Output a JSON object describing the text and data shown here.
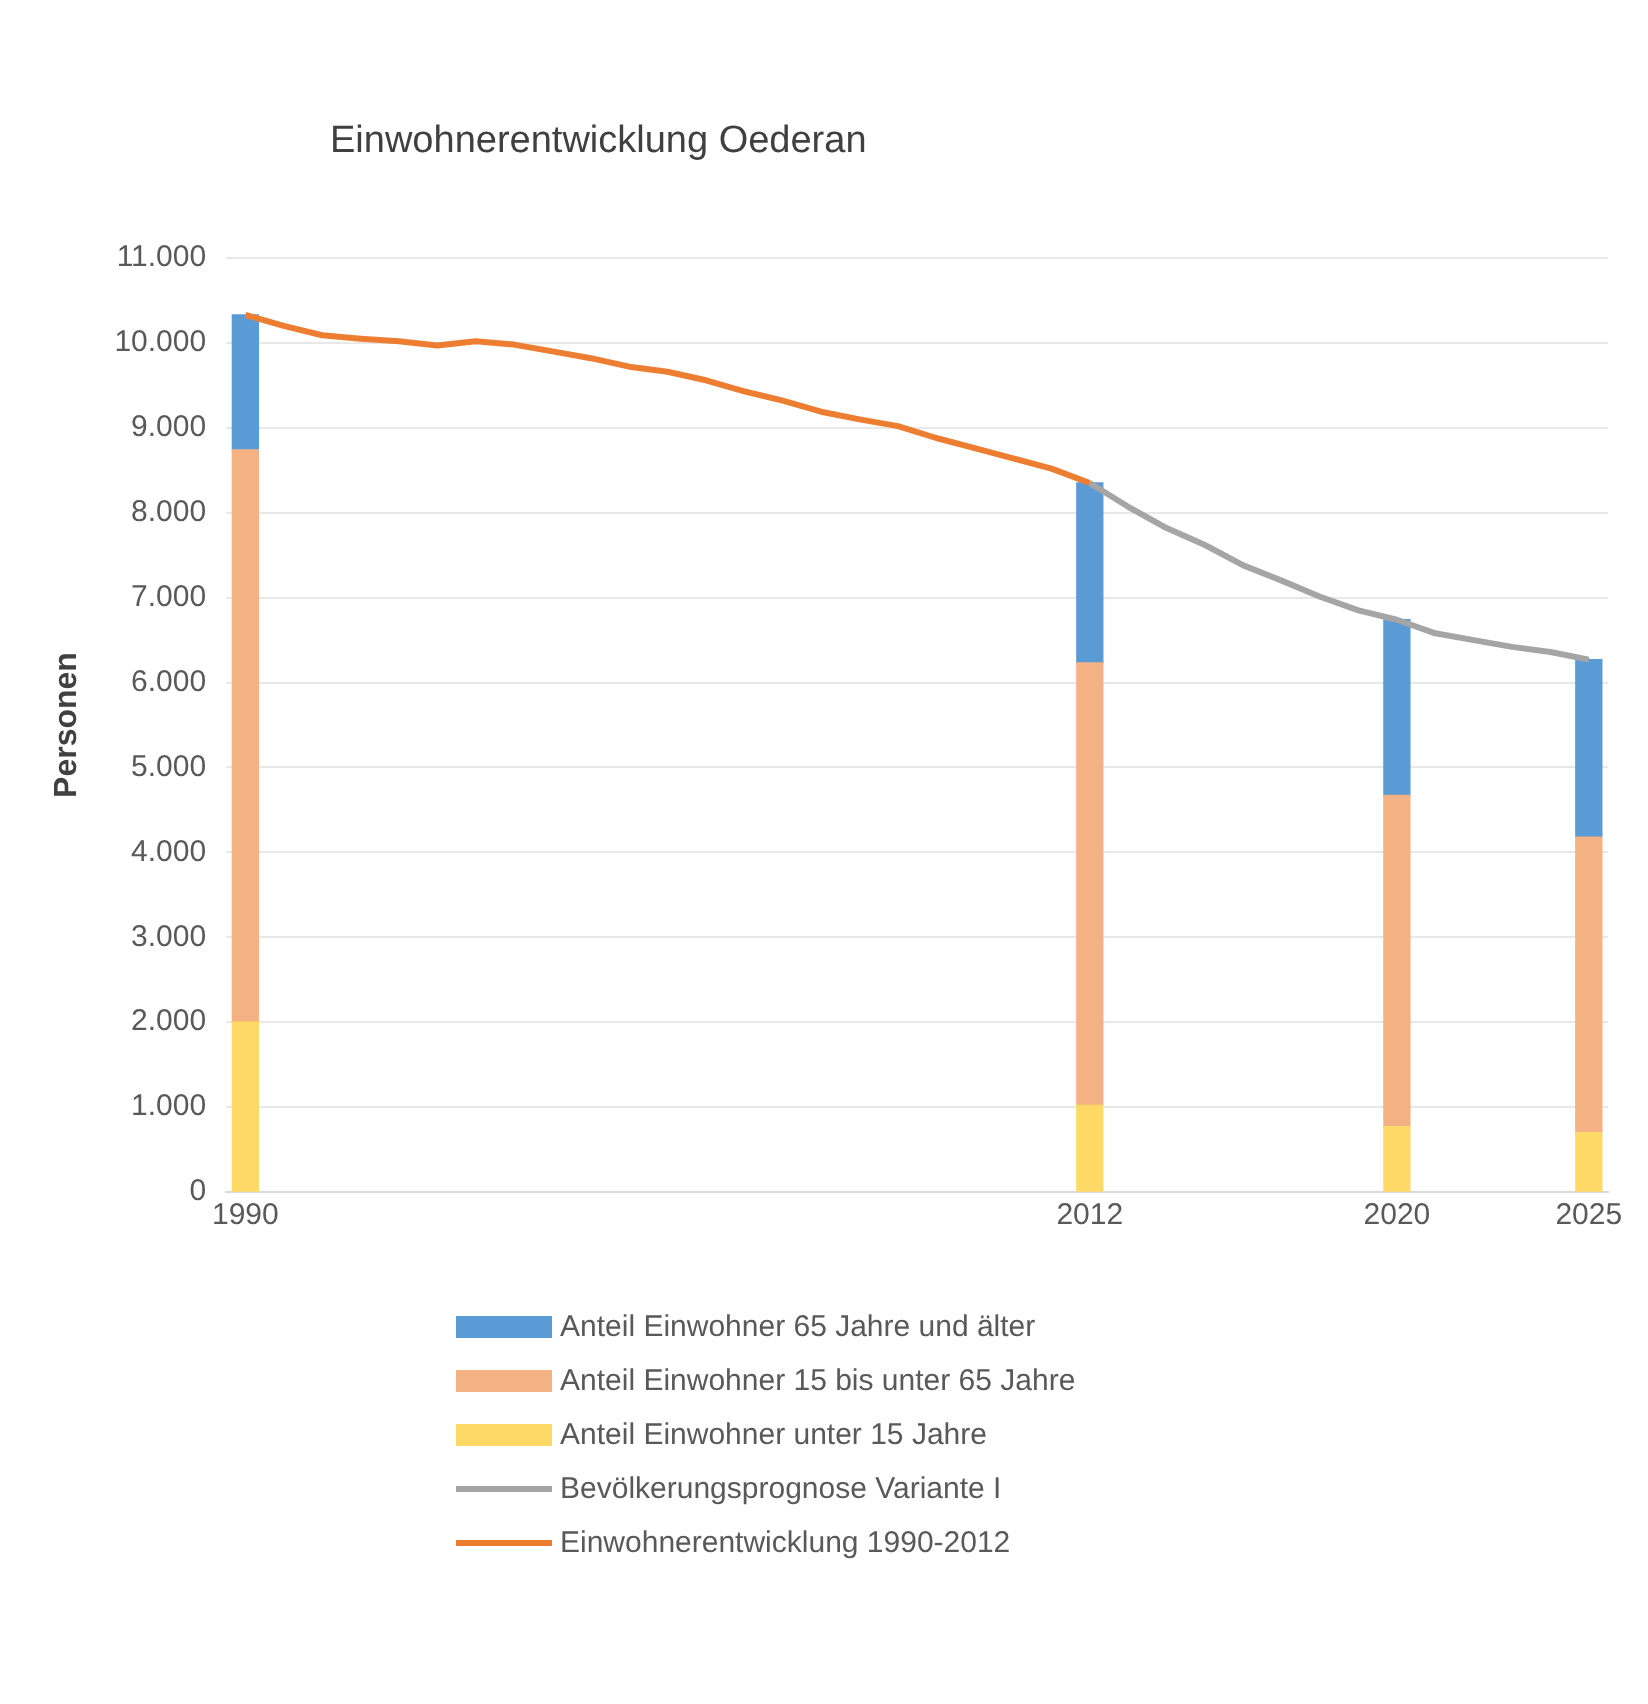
{
  "chart_data": {
    "type": "bar",
    "title": "Einwohnerentwicklung Oederan",
    "ylabel": "Personen",
    "stacked": true,
    "grid": "y",
    "legend": "bottom",
    "x": [
      1990,
      2012,
      2020,
      2025
    ],
    "xlim": [
      1989.5,
      2025.5
    ],
    "xticks": [
      1990,
      2012,
      2020,
      2025
    ],
    "ylim": [
      0,
      11000
    ],
    "yticks": [
      0,
      {
        "value": 1000,
        "label": "1.000"
      },
      {
        "value": 2000,
        "label": "2.000"
      },
      {
        "value": 3000,
        "label": "3.000"
      },
      {
        "value": 4000,
        "label": "4.000"
      },
      {
        "value": 5000,
        "label": "5.000"
      },
      {
        "value": 6000,
        "label": "6.000"
      },
      {
        "value": 7000,
        "label": "7.000"
      },
      {
        "value": 8000,
        "label": "8.000"
      },
      {
        "value": 9000,
        "label": "9.000"
      },
      {
        "value": 10000,
        "label": "10.000"
      },
      {
        "value": 11000,
        "label": "11.000"
      }
    ],
    "series": [
      {
        "name": "Anteil Einwohner unter 15 Jahre",
        "color": "#ffd966",
        "values": [
          2000,
          1020,
          770,
          700
        ]
      },
      {
        "name": "Anteil Einwohner 15 bis unter 65 Jahre",
        "color": "#f4b183",
        "values": [
          6740,
          5210,
          3900,
          3480
        ]
      },
      {
        "name": "Anteil Einwohner 65 Jahre und älter",
        "color": "#5b9bd5",
        "values": [
          1590,
          2120,
          2070,
          2090
        ]
      },
      {
        "name": "Bevölkerungsprognose Variante I",
        "type": "line",
        "color": "#a5a5a5",
        "x": [
          2012,
          2013,
          2014,
          2015,
          2016,
          2017,
          2018,
          2019,
          2020,
          2021,
          2022,
          2023,
          2024,
          2025
        ],
        "values": [
          8350,
          8070,
          7820,
          7620,
          7380,
          7200,
          7010,
          6850,
          6740,
          6580,
          6500,
          6420,
          6360,
          6270
        ]
      },
      {
        "name": "Einwohnerentwicklung 1990-2012",
        "type": "line",
        "color": "#ed7d31",
        "x": [
          1990,
          1991,
          1992,
          1993,
          1994,
          1995,
          1996,
          1997,
          1998,
          1999,
          2000,
          2001,
          2002,
          2003,
          2004,
          2005,
          2006,
          2007,
          2008,
          2009,
          2010,
          2011,
          2012
        ],
        "values": [
          10330,
          10200,
          10090,
          10050,
          10020,
          9970,
          10020,
          9980,
          9900,
          9820,
          9720,
          9660,
          9560,
          9430,
          9320,
          9190,
          9100,
          9020,
          8880,
          8760,
          8640,
          8520,
          8350
        ]
      }
    ]
  }
}
